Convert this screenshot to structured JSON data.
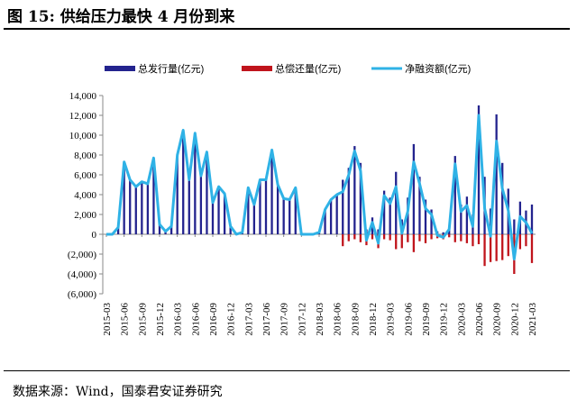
{
  "title": "图 15:  供给压力最快 4 月份到来",
  "source": "数据来源：Wind，国泰君安证券研究",
  "colors": {
    "issuance": "#23238e",
    "repayment": "#c0141c",
    "net": "#2fb2e6"
  },
  "chart_data": {
    "type": "bar",
    "ylabel": "",
    "xlabel": "",
    "ylim": [
      -6000,
      14000
    ],
    "yticks": [
      -6000,
      -4000,
      -2000,
      0,
      2000,
      4000,
      6000,
      8000,
      10000,
      12000,
      14000
    ],
    "ytick_labels": [
      "(6,000)",
      "(4,000)",
      "(2,000)",
      "0",
      "2,000",
      "4,000",
      "6,000",
      "8,000",
      "10,000",
      "12,000",
      "14,000"
    ],
    "xtick_labels": [
      "2015-03",
      "2015-06",
      "2015-09",
      "2015-12",
      "2016-03",
      "2016-06",
      "2016-09",
      "2016-12",
      "2017-03",
      "2017-06",
      "2017-09",
      "2017-12",
      "2018-03",
      "2018-06",
      "2018-09",
      "2018-12",
      "2019-03",
      "2019-06",
      "2019-09",
      "2019-12",
      "2020-03",
      "2020-06",
      "2020-09",
      "2020-12",
      "2021-03"
    ],
    "legend": [
      "总发行量(亿元)",
      "总偿还量(亿元)",
      "净融资额(亿元)"
    ],
    "legend_position": "top",
    "series": [
      {
        "name": "总发行量(亿元)",
        "type": "bar",
        "values": [
          0,
          0,
          700,
          7300,
          5500,
          4800,
          5300,
          5100,
          7700,
          1000,
          300,
          800,
          8000,
          10500,
          5500,
          10200,
          5900,
          8300,
          3200,
          4800,
          4100,
          800,
          0,
          200,
          4700,
          3000,
          5500,
          5500,
          8500,
          5000,
          3600,
          3500,
          4700,
          0,
          0,
          0,
          200,
          2500,
          3500,
          4000,
          5500,
          6700,
          8900,
          7200,
          500,
          1700,
          500,
          4400,
          3700,
          6300,
          1500,
          3700,
          9100,
          5800,
          3500,
          2500,
          300,
          200,
          800,
          7900,
          3000,
          3800,
          2000,
          13000,
          5800,
          2600,
          12100,
          7200,
          4600,
          1500,
          3300,
          2400,
          3000
        ]
      },
      {
        "name": "总偿还量(亿元)",
        "type": "bar",
        "values": [
          0,
          0,
          0,
          0,
          0,
          0,
          0,
          0,
          0,
          0,
          0,
          0,
          0,
          0,
          0,
          0,
          0,
          0,
          0,
          0,
          0,
          0,
          0,
          0,
          0,
          0,
          0,
          0,
          0,
          0,
          0,
          0,
          0,
          0,
          0,
          0,
          0,
          0,
          0,
          0,
          -1200,
          -700,
          -500,
          -800,
          -1100,
          -500,
          -1400,
          -500,
          -600,
          -1500,
          -1400,
          -800,
          -1800,
          -700,
          -900,
          -500,
          -400,
          -500,
          -300,
          -800,
          -700,
          -900,
          -1200,
          -1000,
          -3200,
          -2800,
          -2700,
          -2600,
          -2200,
          -4000,
          -1500,
          -1200,
          -2900
        ]
      },
      {
        "name": "净融资额(亿元)",
        "type": "line",
        "values": [
          0,
          0,
          700,
          7300,
          5500,
          4800,
          5300,
          5100,
          7700,
          1000,
          300,
          800,
          8000,
          10500,
          5500,
          10200,
          5900,
          8300,
          3200,
          4800,
          4100,
          800,
          0,
          200,
          4700,
          3000,
          5500,
          5500,
          8500,
          5000,
          3600,
          3500,
          4700,
          0,
          0,
          0,
          200,
          2500,
          3500,
          4000,
          4300,
          6000,
          8400,
          6400,
          -600,
          1200,
          -900,
          3900,
          3100,
          4800,
          100,
          2300,
          7300,
          5100,
          2600,
          2000,
          -100,
          -300,
          500,
          7100,
          2300,
          2900,
          800,
          12000,
          2600,
          -200,
          9400,
          4600,
          2400,
          -2500,
          1800,
          1200,
          100
        ]
      }
    ]
  }
}
